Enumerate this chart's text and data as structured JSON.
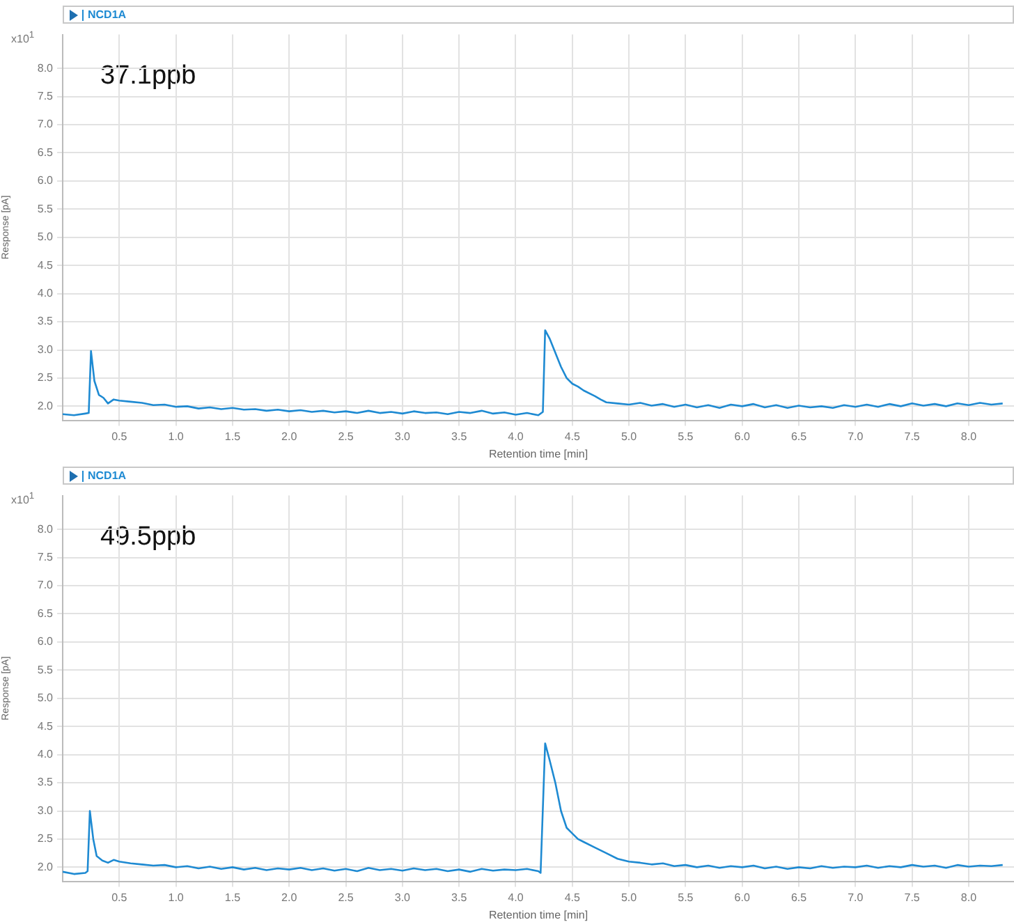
{
  "chart_data": [
    {
      "type": "line",
      "title": "NCD1A",
      "xlabel": "Retention time [min]",
      "ylabel": "Response [pA]",
      "annotations": [
        "x10$^{1}$",
        "37.1ppb"
      ],
      "grid": true,
      "marker": "none",
      "line_style": "solid",
      "xlim": [
        0,
        8.4
      ],
      "ylim": [
        1.75,
        8.6
      ],
      "xticks": [
        {
          "value": 0.5,
          "label": "0.5"
        },
        {
          "value": 1,
          "label": "1.0"
        },
        {
          "value": 1.5,
          "label": "1.5"
        },
        {
          "value": 2,
          "label": "2.0"
        },
        {
          "value": 2.5,
          "label": "2.5"
        },
        {
          "value": 3,
          "label": "3.0"
        },
        {
          "value": 3.5,
          "label": "3.5"
        },
        {
          "value": 4,
          "label": "4.0"
        },
        {
          "value": 4.5,
          "label": "4.5"
        },
        {
          "value": 5,
          "label": "5.0"
        },
        {
          "value": 5.5,
          "label": "5.5"
        },
        {
          "value": 6,
          "label": "6.0"
        },
        {
          "value": 6.5,
          "label": "6.5"
        },
        {
          "value": 7,
          "label": "7.0"
        },
        {
          "value": 7.5,
          "label": "7.5"
        },
        {
          "value": 8,
          "label": "8.0"
        }
      ],
      "yticks": [
        {
          "value": 2,
          "label": "2.0"
        },
        {
          "value": 2.5,
          "label": "2.5"
        },
        {
          "value": 3,
          "label": "3.0"
        },
        {
          "value": 3.5,
          "label": "3.5"
        },
        {
          "value": 4,
          "label": "4.0"
        },
        {
          "value": 4.5,
          "label": "4.5"
        },
        {
          "value": 5,
          "label": "5.0"
        },
        {
          "value": 5.5,
          "label": "5.5"
        },
        {
          "value": 6,
          "label": "6.0"
        },
        {
          "value": 6.5,
          "label": "6.5"
        },
        {
          "value": 7,
          "label": "7.0"
        },
        {
          "value": 7.5,
          "label": "7.5"
        },
        {
          "value": 8,
          "label": "8.0"
        }
      ],
      "x": [
        0,
        0.1,
        0.2,
        0.23,
        0.25,
        0.28,
        0.32,
        0.36,
        0.4,
        0.45,
        0.5,
        0.6,
        0.7,
        0.8,
        0.9,
        1,
        1.1,
        1.2,
        1.3,
        1.4,
        1.5,
        1.6,
        1.7,
        1.8,
        1.9,
        2,
        2.1,
        2.2,
        2.3,
        2.4,
        2.5,
        2.6,
        2.7,
        2.8,
        2.9,
        3,
        3.1,
        3.2,
        3.3,
        3.4,
        3.5,
        3.6,
        3.7,
        3.8,
        3.9,
        4,
        4.1,
        4.2,
        4.24,
        4.26,
        4.3,
        4.35,
        4.4,
        4.45,
        4.5,
        4.55,
        4.6,
        4.7,
        4.75,
        4.8,
        4.9,
        5,
        5.1,
        5.2,
        5.3,
        5.4,
        5.5,
        5.6,
        5.7,
        5.8,
        5.9,
        6,
        6.1,
        6.2,
        6.3,
        6.4,
        6.5,
        6.6,
        6.7,
        6.8,
        6.9,
        7,
        7.1,
        7.2,
        7.3,
        7.4,
        7.5,
        7.6,
        7.7,
        7.8,
        7.9,
        8,
        8.1,
        8.2,
        8.3
      ],
      "series": [
        {
          "color": "#1e8ad2",
          "values": [
            1.86,
            1.84,
            1.87,
            1.88,
            2.98,
            2.45,
            2.2,
            2.15,
            2.05,
            2.12,
            2.1,
            2.08,
            2.06,
            2.02,
            2.03,
            1.99,
            2,
            1.96,
            1.98,
            1.95,
            1.97,
            1.94,
            1.95,
            1.92,
            1.94,
            1.91,
            1.93,
            1.9,
            1.92,
            1.89,
            1.91,
            1.88,
            1.92,
            1.88,
            1.9,
            1.87,
            1.91,
            1.88,
            1.89,
            1.86,
            1.9,
            1.88,
            1.92,
            1.87,
            1.89,
            1.85,
            1.88,
            1.84,
            1.9,
            3.35,
            3.2,
            2.95,
            2.7,
            2.5,
            2.4,
            2.35,
            2.28,
            2.18,
            2.12,
            2.07,
            2.05,
            2.03,
            2.06,
            2.01,
            2.04,
            1.99,
            2.03,
            1.98,
            2.02,
            1.97,
            2.03,
            2,
            2.04,
            1.98,
            2.02,
            1.97,
            2.01,
            1.98,
            2,
            1.97,
            2.02,
            1.99,
            2.03,
            1.99,
            2.04,
            2,
            2.05,
            2.01,
            2.04,
            2,
            2.05,
            2.02,
            2.06,
            2.03,
            2.05
          ]
        }
      ]
    },
    {
      "type": "line",
      "title": "NCD1A",
      "xlabel": "Retention time [min]",
      "ylabel": "Response [pA]",
      "annotations": [
        "x10$^{1}$",
        "49.5ppb"
      ],
      "grid": true,
      "marker": "none",
      "line_style": "solid",
      "xlim": [
        0,
        8.4
      ],
      "ylim": [
        1.75,
        8.6
      ],
      "xticks": [
        {
          "value": 0.5,
          "label": "0.5"
        },
        {
          "value": 1,
          "label": "1.0"
        },
        {
          "value": 1.5,
          "label": "1.5"
        },
        {
          "value": 2,
          "label": "2.0"
        },
        {
          "value": 2.5,
          "label": "2.5"
        },
        {
          "value": 3,
          "label": "3.0"
        },
        {
          "value": 3.5,
          "label": "3.5"
        },
        {
          "value": 4,
          "label": "4.0"
        },
        {
          "value": 4.5,
          "label": "4.5"
        },
        {
          "value": 5,
          "label": "5.0"
        },
        {
          "value": 5.5,
          "label": "5.5"
        },
        {
          "value": 6,
          "label": "6.0"
        },
        {
          "value": 6.5,
          "label": "6.5"
        },
        {
          "value": 7,
          "label": "7.0"
        },
        {
          "value": 7.5,
          "label": "7.5"
        },
        {
          "value": 8,
          "label": "8.0"
        }
      ],
      "yticks": [
        {
          "value": 2,
          "label": "2.0"
        },
        {
          "value": 2.5,
          "label": "2.5"
        },
        {
          "value": 3,
          "label": "3.0"
        },
        {
          "value": 3.5,
          "label": "3.5"
        },
        {
          "value": 4,
          "label": "4.0"
        },
        {
          "value": 4.5,
          "label": "4.5"
        },
        {
          "value": 5,
          "label": "5.0"
        },
        {
          "value": 5.5,
          "label": "5.5"
        },
        {
          "value": 6,
          "label": "6.0"
        },
        {
          "value": 6.5,
          "label": "6.5"
        },
        {
          "value": 7,
          "label": "7.0"
        },
        {
          "value": 7.5,
          "label": "7.5"
        },
        {
          "value": 8,
          "label": "8.0"
        }
      ],
      "x": [
        0,
        0.1,
        0.2,
        0.22,
        0.24,
        0.27,
        0.3,
        0.35,
        0.4,
        0.45,
        0.5,
        0.6,
        0.7,
        0.8,
        0.9,
        1,
        1.1,
        1.2,
        1.3,
        1.4,
        1.5,
        1.6,
        1.7,
        1.8,
        1.9,
        2,
        2.1,
        2.2,
        2.3,
        2.4,
        2.5,
        2.6,
        2.7,
        2.8,
        2.9,
        3,
        3.1,
        3.2,
        3.3,
        3.4,
        3.5,
        3.6,
        3.7,
        3.8,
        3.9,
        4,
        4.1,
        4.2,
        4.22,
        4.26,
        4.3,
        4.35,
        4.4,
        4.45,
        4.5,
        4.55,
        4.6,
        4.7,
        4.75,
        4.8,
        4.9,
        5,
        5.1,
        5.2,
        5.3,
        5.4,
        5.5,
        5.6,
        5.7,
        5.8,
        5.9,
        6,
        6.1,
        6.2,
        6.3,
        6.4,
        6.5,
        6.6,
        6.7,
        6.8,
        6.9,
        7,
        7.1,
        7.2,
        7.3,
        7.4,
        7.5,
        7.6,
        7.7,
        7.8,
        7.9,
        8,
        8.1,
        8.2,
        8.3
      ],
      "series": [
        {
          "color": "#1e8ad2",
          "values": [
            1.92,
            1.88,
            1.9,
            1.93,
            3,
            2.5,
            2.2,
            2.12,
            2.08,
            2.13,
            2.1,
            2.07,
            2.05,
            2.03,
            2.04,
            2,
            2.02,
            1.98,
            2.01,
            1.97,
            2,
            1.96,
            1.99,
            1.95,
            1.98,
            1.96,
            1.99,
            1.95,
            1.98,
            1.94,
            1.97,
            1.93,
            1.99,
            1.95,
            1.97,
            1.94,
            1.98,
            1.95,
            1.97,
            1.93,
            1.96,
            1.92,
            1.97,
            1.94,
            1.96,
            1.95,
            1.97,
            1.93,
            1.9,
            4.2,
            3.9,
            3.5,
            3.0,
            2.7,
            2.6,
            2.5,
            2.45,
            2.35,
            2.3,
            2.25,
            2.15,
            2.1,
            2.08,
            2.05,
            2.07,
            2.02,
            2.04,
            2,
            2.03,
            1.99,
            2.02,
            2,
            2.03,
            1.98,
            2.01,
            1.97,
            2,
            1.98,
            2.02,
            1.99,
            2.01,
            2,
            2.03,
            1.99,
            2.02,
            2,
            2.04,
            2.01,
            2.03,
            1.99,
            2.04,
            2.01,
            2.03,
            2.02,
            2.04
          ]
        }
      ]
    }
  ]
}
